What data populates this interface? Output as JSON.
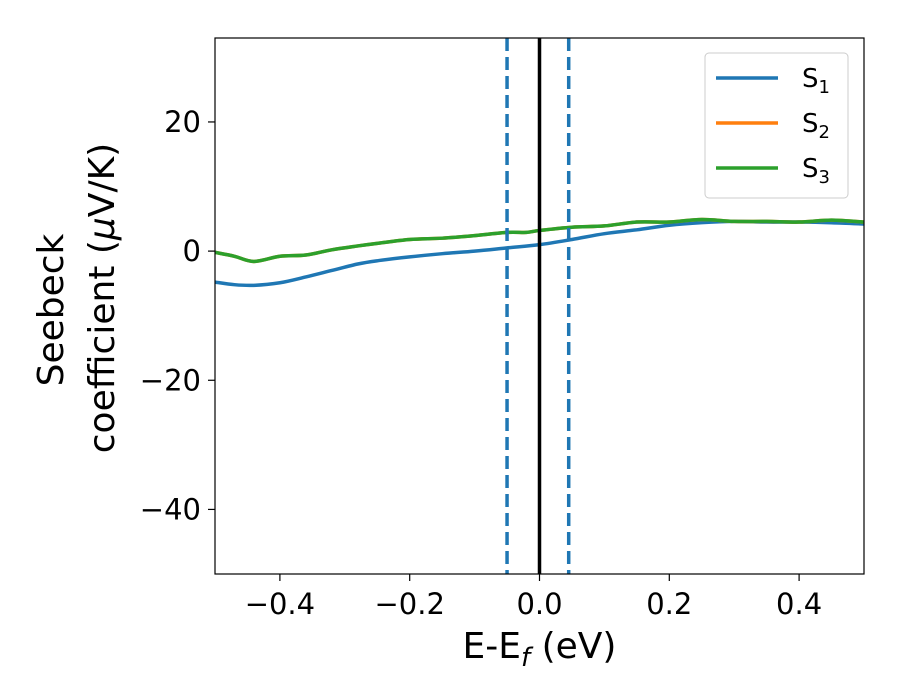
{
  "chart_data": {
    "type": "line",
    "xlabel": "E-E",
    "xlabel_sub": "f",
    "xlabel_unit": " (eV)",
    "ylabel_line1": "Seebeck",
    "ylabel_line2": "coefficient  (",
    "ylabel_mu": "μ",
    "ylabel_unit": "V/K)",
    "xlim": [
      -0.5,
      0.5
    ],
    "ylim": [
      -50,
      33
    ],
    "xticks": [
      -0.4,
      -0.2,
      0.0,
      0.2,
      0.4
    ],
    "xtick_labels": [
      "−0.4",
      "−0.2",
      "0.0",
      "0.2",
      "0.4"
    ],
    "yticks": [
      -40,
      -20,
      0,
      20
    ],
    "ytick_labels": [
      "−40",
      "−20",
      "0",
      "20"
    ],
    "legend_position": "top-right",
    "vlines": [
      {
        "x": 0.0,
        "color": "#000000",
        "style": "solid"
      },
      {
        "x": -0.05,
        "color": "#1f77b4",
        "style": "dashed"
      },
      {
        "x": 0.045,
        "color": "#1f77b4",
        "style": "dashed"
      }
    ],
    "series": [
      {
        "name": "S",
        "sub": "1",
        "color": "#1f77b4",
        "x": [
          -0.5,
          -0.47,
          -0.44,
          -0.4,
          -0.36,
          -0.32,
          -0.28,
          -0.25,
          -0.2,
          -0.15,
          -0.1,
          -0.05,
          0.0,
          0.05,
          0.1,
          0.15,
          0.2,
          0.25,
          0.3,
          0.35,
          0.4,
          0.45,
          0.5
        ],
        "y": [
          -4.8,
          -5.2,
          -5.3,
          -4.9,
          -4.0,
          -3.0,
          -2.0,
          -1.5,
          -0.9,
          -0.4,
          0.0,
          0.5,
          1.0,
          1.8,
          2.7,
          3.3,
          4.0,
          4.4,
          4.6,
          4.5,
          4.5,
          4.4,
          4.2
        ]
      },
      {
        "name": "S",
        "sub": "2",
        "color": "#ff7f0e",
        "x": [
          -0.5,
          -0.47,
          -0.44,
          -0.4,
          -0.36,
          -0.32,
          -0.28,
          -0.25,
          -0.2,
          -0.15,
          -0.1,
          -0.05,
          -0.02,
          0.0,
          0.05,
          0.1,
          0.15,
          0.2,
          0.25,
          0.3,
          0.35,
          0.4,
          0.45,
          0.5
        ],
        "y": [
          -0.2,
          -0.8,
          -1.6,
          -0.8,
          -0.6,
          0.2,
          0.8,
          1.2,
          1.8,
          2.0,
          2.4,
          2.9,
          2.9,
          3.2,
          3.7,
          3.9,
          4.5,
          4.5,
          4.9,
          4.6,
          4.6,
          4.5,
          4.8,
          4.5
        ]
      },
      {
        "name": "S",
        "sub": "3",
        "color": "#2ca02c",
        "x": [
          -0.5,
          -0.47,
          -0.44,
          -0.4,
          -0.36,
          -0.32,
          -0.28,
          -0.25,
          -0.2,
          -0.15,
          -0.1,
          -0.05,
          -0.02,
          0.0,
          0.05,
          0.1,
          0.15,
          0.2,
          0.25,
          0.3,
          0.35,
          0.4,
          0.45,
          0.5
        ],
        "y": [
          -0.2,
          -0.8,
          -1.6,
          -0.8,
          -0.6,
          0.2,
          0.8,
          1.2,
          1.8,
          2.0,
          2.4,
          2.9,
          2.9,
          3.2,
          3.7,
          3.9,
          4.5,
          4.5,
          4.9,
          4.6,
          4.6,
          4.5,
          4.8,
          4.5
        ]
      }
    ]
  }
}
